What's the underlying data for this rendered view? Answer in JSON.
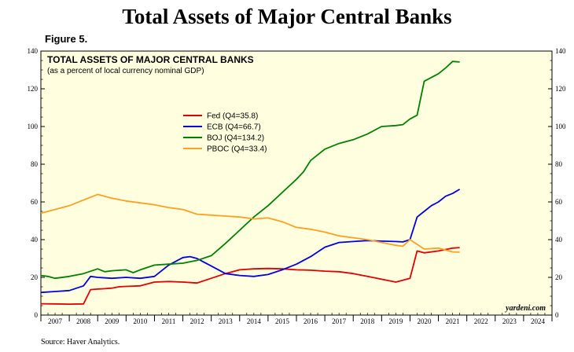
{
  "header": {
    "title": "Total Assets of Major Central Banks",
    "figure_label": "Figure 5."
  },
  "footer": {
    "source": "Source: Haver Analytics.",
    "credit": "yardeni.com"
  },
  "colors": {
    "plot_background": "#ffffe0",
    "fed": "#e00000",
    "ecb": "#0000e0",
    "boj": "#008000",
    "pboc": "#ffa020"
  },
  "chart_data": {
    "type": "line",
    "title": "TOTAL ASSETS OF MAJOR CENTRAL BANKS",
    "subtitle": "(as a percent of local currency nominal GDP)",
    "ylim": [
      0,
      140
    ],
    "yticks": [
      0,
      20,
      40,
      60,
      80,
      100,
      120,
      140
    ],
    "xlim": [
      2007,
      2025
    ],
    "xtick_labels": [
      "2007",
      "2008",
      "2009",
      "2010",
      "2011",
      "2012",
      "2013",
      "2014",
      "2015",
      "2016",
      "2017",
      "2018",
      "2019",
      "2020",
      "2021",
      "2022",
      "2023",
      "2024"
    ],
    "grid": false,
    "legend_position": "upper-left",
    "series": [
      {
        "name": "Fed (Q4=35.8)",
        "color_key": "fed",
        "x": [
          2007.0,
          2007.5,
          2008.0,
          2008.5,
          2008.75,
          2009.0,
          2009.25,
          2009.5,
          2009.75,
          2010.0,
          2010.5,
          2011.0,
          2011.5,
          2012.0,
          2012.5,
          2013.0,
          2013.5,
          2014.0,
          2014.5,
          2015.0,
          2015.5,
          2016.0,
          2016.5,
          2017.0,
          2017.5,
          2018.0,
          2018.5,
          2019.0,
          2019.5,
          2019.75,
          2020.0,
          2020.25,
          2020.5,
          2021.0,
          2021.5,
          2021.75
        ],
        "y": [
          6.0,
          5.9,
          5.8,
          5.9,
          13.5,
          13.8,
          14.0,
          14.3,
          15.0,
          15.2,
          15.5,
          17.5,
          17.8,
          17.5,
          17.0,
          19.5,
          22.0,
          24.0,
          24.5,
          24.7,
          24.5,
          24.0,
          23.8,
          23.3,
          23.0,
          22.0,
          20.5,
          19.0,
          17.5,
          18.5,
          19.5,
          34.0,
          33.0,
          34.0,
          35.5,
          35.8
        ]
      },
      {
        "name": "ECB (Q4=66.7)",
        "color_key": "ecb",
        "x": [
          2007.0,
          2007.5,
          2008.0,
          2008.5,
          2008.75,
          2009.0,
          2009.5,
          2010.0,
          2010.5,
          2011.0,
          2011.5,
          2012.0,
          2012.25,
          2012.5,
          2013.0,
          2013.5,
          2014.0,
          2014.5,
          2015.0,
          2015.5,
          2016.0,
          2016.5,
          2017.0,
          2017.5,
          2018.0,
          2018.5,
          2019.0,
          2019.5,
          2019.75,
          2020.0,
          2020.25,
          2020.5,
          2020.75,
          2021.0,
          2021.25,
          2021.5,
          2021.75
        ],
        "y": [
          12.0,
          12.5,
          13.0,
          15.5,
          20.5,
          20.0,
          19.5,
          20.0,
          19.5,
          20.5,
          26.5,
          30.5,
          31.0,
          30.0,
          26.0,
          22.0,
          21.0,
          20.5,
          21.5,
          24.0,
          27.0,
          31.0,
          36.0,
          38.5,
          39.0,
          39.5,
          39.2,
          39.0,
          38.8,
          40.0,
          52.0,
          55.0,
          58.0,
          60.0,
          63.0,
          64.5,
          66.7
        ]
      },
      {
        "name": "BOJ (Q4=134.2)",
        "color_key": "boj",
        "x": [
          2007.0,
          2007.25,
          2007.5,
          2008.0,
          2008.5,
          2009.0,
          2009.25,
          2009.5,
          2010.0,
          2010.25,
          2010.5,
          2011.0,
          2011.5,
          2012.0,
          2012.5,
          2013.0,
          2013.5,
          2014.0,
          2014.5,
          2015.0,
          2015.5,
          2016.0,
          2016.25,
          2016.5,
          2017.0,
          2017.5,
          2018.0,
          2018.5,
          2019.0,
          2019.5,
          2019.75,
          2020.0,
          2020.25,
          2020.5,
          2021.0,
          2021.25,
          2021.5,
          2021.75
        ],
        "y": [
          21.0,
          20.5,
          19.5,
          20.5,
          22.0,
          24.5,
          23.0,
          23.5,
          24.0,
          22.5,
          24.0,
          26.5,
          27.0,
          27.5,
          29.0,
          31.5,
          38.0,
          45.0,
          52.0,
          58.0,
          65.0,
          72.0,
          76.0,
          82.0,
          88.0,
          91.0,
          93.0,
          96.0,
          100.0,
          100.5,
          101.0,
          104.0,
          106.0,
          124.0,
          128.0,
          131.0,
          134.5,
          134.2
        ]
      },
      {
        "name": "PBOC (Q4=33.4)",
        "color_key": "pboc",
        "x": [
          2007.0,
          2007.5,
          2008.0,
          2008.5,
          2009.0,
          2009.5,
          2010.0,
          2010.5,
          2011.0,
          2011.5,
          2012.0,
          2012.5,
          2013.0,
          2013.5,
          2014.0,
          2014.5,
          2015.0,
          2015.5,
          2016.0,
          2016.5,
          2017.0,
          2017.5,
          2018.0,
          2018.5,
          2019.0,
          2019.5,
          2019.75,
          2020.0,
          2020.25,
          2020.5,
          2021.0,
          2021.5,
          2021.75
        ],
        "y": [
          54.0,
          56.0,
          58.0,
          61.0,
          64.0,
          62.0,
          60.5,
          59.5,
          58.5,
          57.0,
          56.0,
          53.5,
          53.0,
          52.5,
          52.0,
          51.0,
          51.5,
          49.5,
          46.5,
          45.5,
          44.0,
          42.0,
          41.0,
          40.0,
          38.5,
          37.0,
          36.5,
          40.0,
          37.5,
          35.0,
          35.5,
          33.5,
          33.4
        ]
      }
    ]
  }
}
